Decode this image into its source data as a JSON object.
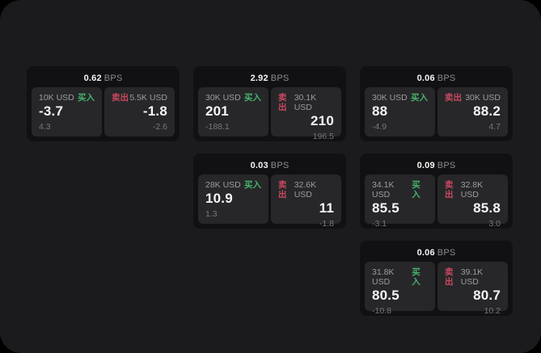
{
  "labels": {
    "bps_suffix": "BPS",
    "buy": "买入",
    "sell": "卖出"
  },
  "colors": {
    "screen_bg": "#1b1b1d",
    "card_bg": "#111113",
    "panel_bg": "#27272a",
    "buy_green": "#46b36b",
    "sell_red": "#c9485f"
  },
  "cards": [
    {
      "bps": "0.62",
      "buy": {
        "size": "10K USD",
        "price": "-3.7",
        "delta": "4.3"
      },
      "sell": {
        "size": "5.5K USD",
        "price": "-1.8",
        "delta": "-2.6"
      }
    },
    {
      "bps": "2.92",
      "buy": {
        "size": "30K USD",
        "price": "201",
        "delta": "-188.1"
      },
      "sell": {
        "size": "30.1K USD",
        "price": "210",
        "delta": "196.5"
      }
    },
    {
      "bps": "0.06",
      "buy": {
        "size": "30K USD",
        "price": "88",
        "delta": "-4.9"
      },
      "sell": {
        "size": "30K USD",
        "price": "88.2",
        "delta": "4.7"
      }
    },
    {
      "bps": "0.03",
      "buy": {
        "size": "28K USD",
        "price": "10.9",
        "delta": "1.3"
      },
      "sell": {
        "size": "32.6K USD",
        "price": "11",
        "delta": "-1.8"
      }
    },
    {
      "bps": "0.09",
      "buy": {
        "size": "34.1K USD",
        "price": "85.5",
        "delta": "-3.1"
      },
      "sell": {
        "size": "32.8K USD",
        "price": "85.8",
        "delta": "3.0"
      }
    },
    {
      "bps": "0.06",
      "buy": {
        "size": "31.8K USD",
        "price": "80.5",
        "delta": "-10.8"
      },
      "sell": {
        "size": "39.1K USD",
        "price": "80.7",
        "delta": "10.2"
      }
    }
  ]
}
